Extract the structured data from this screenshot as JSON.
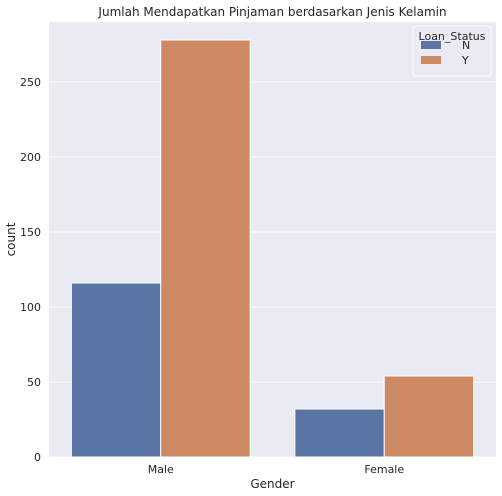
{
  "chart_data": {
    "type": "bar",
    "title": "Jumlah Mendapatkan Pinjaman berdasarkan Jenis Kelamin",
    "xlabel": "Gender",
    "ylabel": "count",
    "categories": [
      "Male",
      "Female"
    ],
    "ylim": [
      0,
      290
    ],
    "yticks": [
      0,
      50,
      100,
      150,
      200,
      250
    ],
    "grid": true,
    "legend": {
      "title": "Loan_Status",
      "position": "top-right"
    },
    "series": [
      {
        "name": "N",
        "color": "#5875a4",
        "values": [
          116,
          32
        ]
      },
      {
        "name": "Y",
        "color": "#cc8963",
        "values": [
          278,
          54
        ]
      }
    ]
  }
}
